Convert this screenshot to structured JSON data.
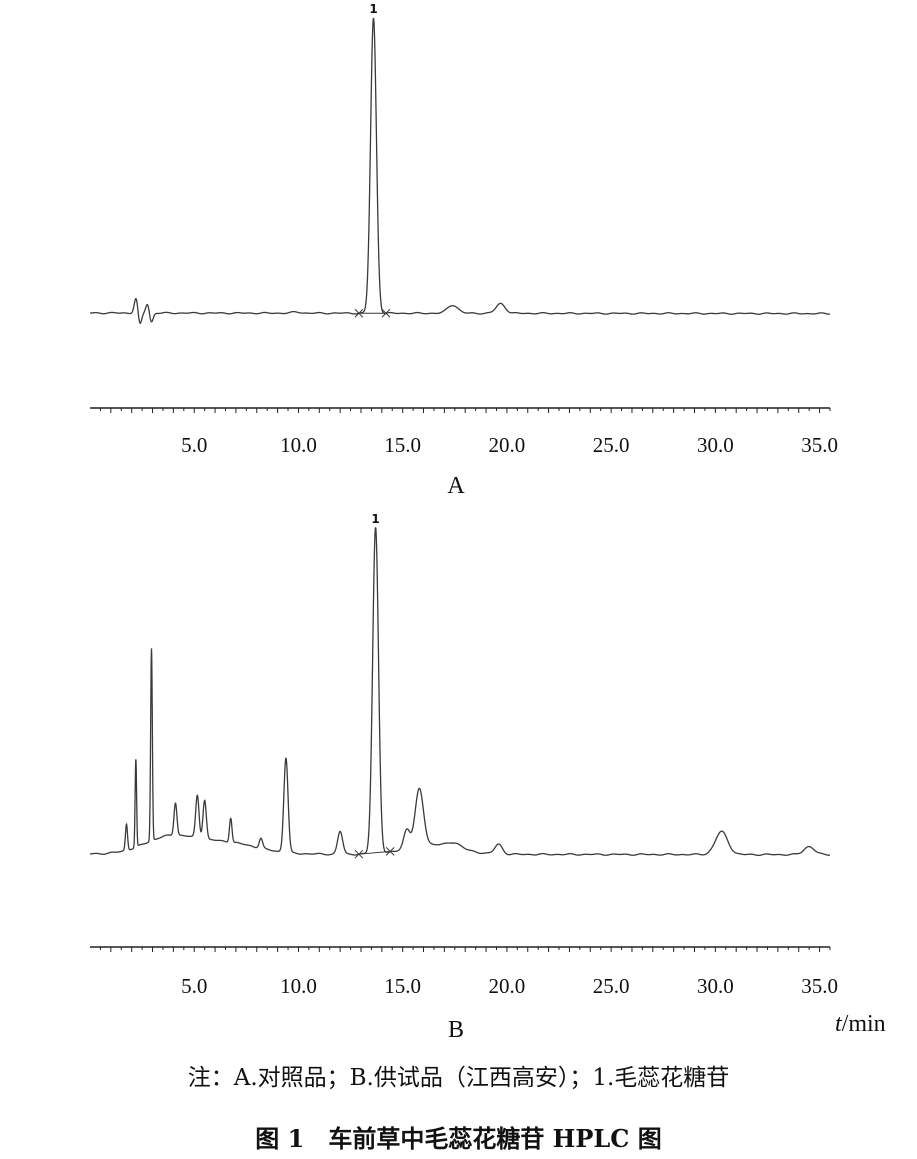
{
  "chart_data": [
    {
      "type": "line",
      "panel_label": "A",
      "xlim": [
        0,
        35.5
      ],
      "x_ticks": [
        5.0,
        10.0,
        15.0,
        20.0,
        25.0,
        30.0,
        35.0
      ],
      "x_tick_labels": [
        "5.0",
        "10.0",
        "15.0",
        "20.0",
        "25.0",
        "30.0",
        "35.0"
      ],
      "peak_labels": [
        {
          "text": "1",
          "x": 13.6
        }
      ],
      "baseline_level": 0.0,
      "ylim": [
        -0.08,
        1.05
      ],
      "peaks": [
        {
          "x": 13.6,
          "height": 1.0,
          "width": 0.14
        },
        {
          "x": 17.4,
          "height": 0.028,
          "width": 0.25
        },
        {
          "x": 19.7,
          "height": 0.033,
          "width": 0.22
        },
        {
          "x": 9.9,
          "height": 0.004,
          "width": 0.2
        }
      ],
      "disturbances": [
        {
          "x": 2.3,
          "up": 0.055,
          "down": -0.045
        },
        {
          "x": 2.85,
          "up": 0.035,
          "down": -0.035
        }
      ],
      "integration_marks": [
        12.9,
        14.2
      ]
    },
    {
      "type": "line",
      "panel_label": "B",
      "xlim": [
        0,
        35.5
      ],
      "x_ticks": [
        5.0,
        10.0,
        15.0,
        20.0,
        25.0,
        30.0,
        35.0
      ],
      "x_tick_labels": [
        "5.0",
        "10.0",
        "15.0",
        "20.0",
        "25.0",
        "30.0",
        "35.0"
      ],
      "x_unit": "t/min",
      "peak_labels": [
        {
          "text": "1",
          "x": 13.7
        }
      ],
      "baseline_level": 0.0,
      "ylim": [
        -0.08,
        1.05
      ],
      "peaks": [
        {
          "x": 13.7,
          "height": 1.0,
          "width": 0.14
        },
        {
          "x": 2.95,
          "height": 0.59,
          "width": 0.04
        },
        {
          "x": 2.2,
          "height": 0.27,
          "width": 0.035
        },
        {
          "x": 1.75,
          "height": 0.08,
          "width": 0.05
        },
        {
          "x": 9.4,
          "height": 0.29,
          "width": 0.1
        },
        {
          "x": 4.1,
          "height": 0.1,
          "width": 0.07
        },
        {
          "x": 5.15,
          "height": 0.13,
          "width": 0.08
        },
        {
          "x": 5.5,
          "height": 0.12,
          "width": 0.08
        },
        {
          "x": 6.75,
          "height": 0.075,
          "width": 0.06
        },
        {
          "x": 8.2,
          "height": 0.03,
          "width": 0.08
        },
        {
          "x": 12.0,
          "height": 0.07,
          "width": 0.12
        },
        {
          "x": 15.8,
          "height": 0.175,
          "width": 0.2
        },
        {
          "x": 15.2,
          "height": 0.06,
          "width": 0.15
        },
        {
          "x": 19.6,
          "height": 0.03,
          "width": 0.18
        },
        {
          "x": 30.3,
          "height": 0.07,
          "width": 0.3
        },
        {
          "x": 34.5,
          "height": 0.025,
          "width": 0.25
        },
        {
          "x": 17.5,
          "height": 0.015,
          "width": 0.3
        }
      ],
      "humps": [
        {
          "x": 3.8,
          "height": 0.05,
          "width": 1.2
        },
        {
          "x": 6.5,
          "height": 0.035,
          "width": 1.5
        },
        {
          "x": 16.5,
          "height": 0.03,
          "width": 1.2
        }
      ],
      "integration_marks": [
        12.9,
        14.4
      ]
    }
  ],
  "note": "注：A.对照品；B.供试品（江西高安）；1.毛蕊花糖苷",
  "caption": "图 1　车前草中毛蕊花糖苷 HPLC 图",
  "colors": {
    "trace": "#3a3a3a",
    "axis": "#222222"
  }
}
